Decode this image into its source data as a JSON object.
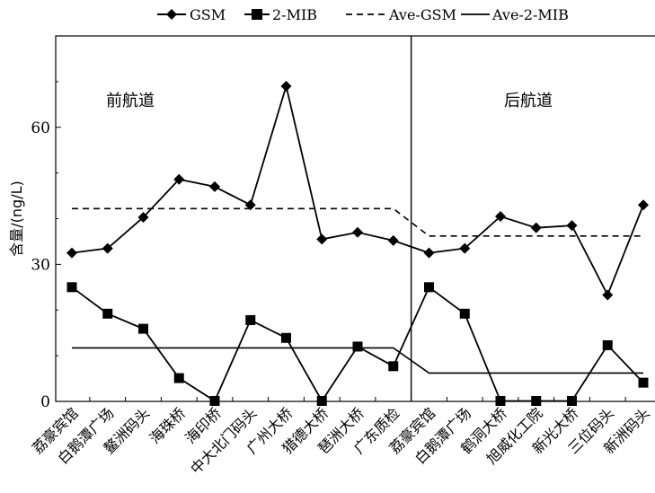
{
  "chart_data": {
    "type": "line",
    "ylabel": "含量/(ng/L)",
    "ylim": [
      0,
      80
    ],
    "yticks": [
      0,
      30,
      60
    ],
    "categories": [
      "荔豪宾馆",
      "白鹅潭广场",
      "鳌洲码头",
      "海珠桥",
      "海印桥",
      "中大北门码头",
      "广州大桥",
      "猎德大桥",
      "琶洲大桥",
      "广东质检",
      "荔豪宾馆",
      "白鹅潭广场",
      "鹤洞大桥",
      "旭威化工院",
      "新光大桥",
      "三位码头",
      "新洲码头"
    ],
    "series": [
      {
        "name": "GSM",
        "values": [
          32.5,
          33.5,
          40.3,
          48.6,
          47.0,
          43.0,
          69.0,
          35.5,
          37.0,
          35.2,
          32.5,
          33.5,
          40.5,
          38.0,
          38.5,
          23.3,
          43.0
        ]
      },
      {
        "name": "2-MIB",
        "values": [
          25.0,
          19.2,
          15.9,
          5.1,
          0.1,
          17.8,
          13.9,
          0.1,
          12.0,
          7.7,
          25.0,
          19.2,
          0.1,
          0.1,
          0.1,
          12.3,
          4.1
        ]
      },
      {
        "name": "Ave-GSM",
        "values": [
          42.2,
          42.2,
          42.2,
          42.2,
          42.2,
          42.2,
          42.2,
          42.2,
          42.2,
          42.2,
          36.2,
          36.2,
          36.2,
          36.2,
          36.2,
          36.2,
          36.2
        ]
      },
      {
        "name": "Ave-2-MIB",
        "values": [
          11.7,
          11.7,
          11.7,
          11.7,
          11.7,
          11.7,
          11.7,
          11.7,
          11.7,
          11.7,
          6.2,
          6.2,
          6.2,
          6.2,
          6.2,
          6.2,
          6.2
        ]
      }
    ],
    "sections": [
      "前航道",
      "后航道"
    ],
    "legend_position": "top",
    "grid": false
  }
}
